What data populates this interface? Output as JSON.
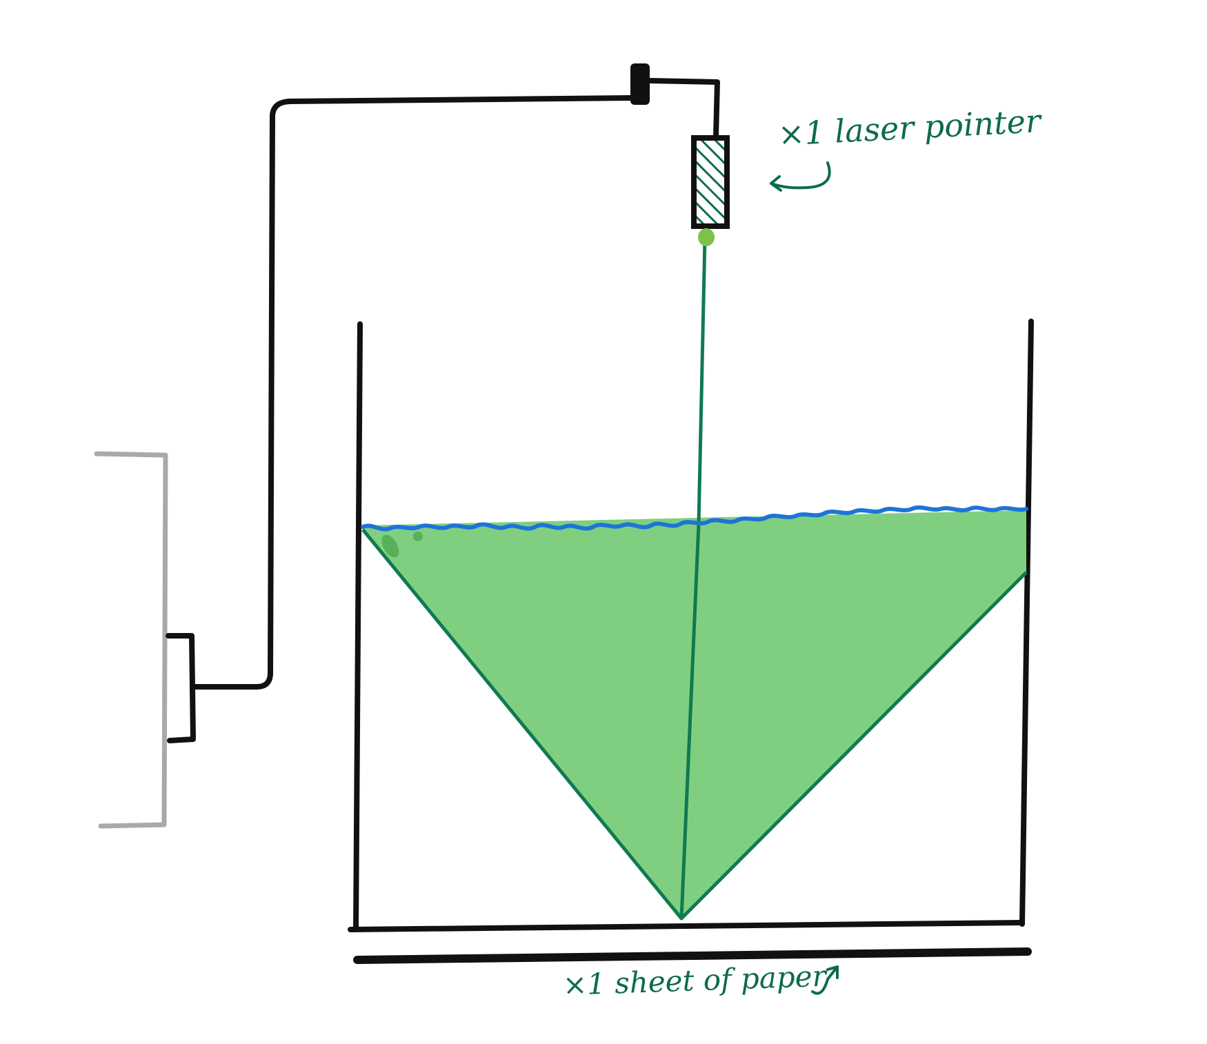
{
  "annotations": {
    "laser_label": "×1 laser pointer",
    "paper_label": "×1 sheet of paper"
  },
  "colors": {
    "outline": "#111111",
    "stand": "#a9a9a9",
    "water_fill": "#80cf80",
    "beam": "#107a50",
    "water_surface": "#1d74d8",
    "ink": "#0c6b4f",
    "laser_dot": "#7cc24a"
  },
  "icons": {
    "laser_arrow": "curved-arrow-left",
    "paper_arrow": "curved-arrow-up"
  }
}
